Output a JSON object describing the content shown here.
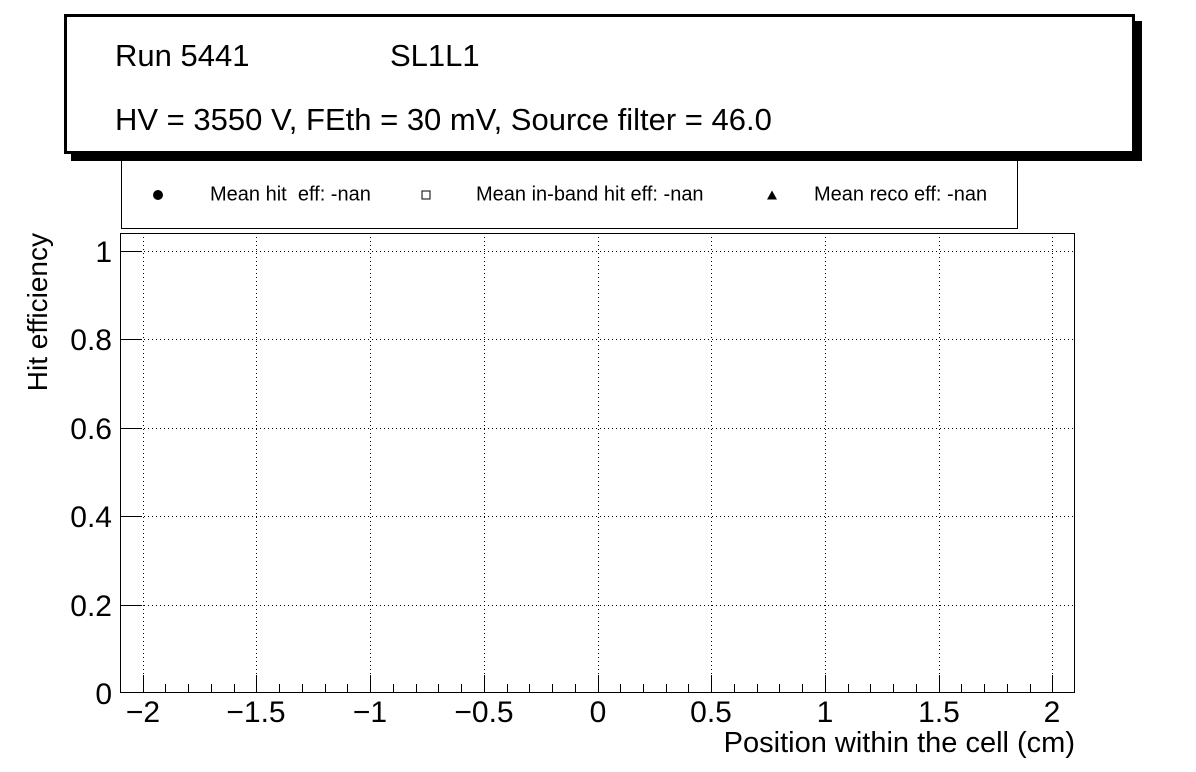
{
  "title_box": {
    "run": "Run 5441",
    "chamber": "SL1L1",
    "conditions": "HV = 3550 V, FEth = 30 mV, Source filter = 46.0"
  },
  "legend": {
    "entries": [
      {
        "marker": "filled-circle-icon",
        "label": "Mean hit  eff: -nan"
      },
      {
        "marker": "open-square-icon",
        "label": "Mean in-band hit eff: -nan"
      },
      {
        "marker": "filled-triangle-icon",
        "label": "Mean reco eff: -nan"
      }
    ]
  },
  "axes": {
    "x_title": "Position within the cell (cm)",
    "y_title": "Hit efficiency",
    "x_tick_labels": [
      "−2",
      "−1.5",
      "−1",
      "−0.5",
      "0",
      "0.5",
      "1",
      "1.5",
      "2"
    ],
    "y_tick_labels": [
      "0",
      "0.2",
      "0.4",
      "0.6",
      "0.8",
      "1"
    ]
  },
  "chart_data": {
    "type": "scatter",
    "title": "Run 5441 SL1L1",
    "subtitle": "HV = 3550 V, FEth = 30 mV, Source filter = 46.0",
    "xlabel": "Position within the cell (cm)",
    "ylabel": "Hit efficiency",
    "xlim": [
      -2.1,
      2.1
    ],
    "ylim": [
      0,
      1.04
    ],
    "x_major_ticks": [
      -2,
      -1.5,
      -1,
      -0.5,
      0,
      0.5,
      1,
      1.5,
      2
    ],
    "x_minor_tick_step": 0.1,
    "y_major_ticks": [
      0,
      0.2,
      0.4,
      0.6,
      0.8,
      1
    ],
    "grid": true,
    "grid_style": "dotted",
    "legend_position": "top",
    "series": [
      {
        "name": "Mean hit  eff: -nan",
        "marker": "filled-circle",
        "points": []
      },
      {
        "name": "Mean in-band hit eff: -nan",
        "marker": "open-square",
        "points": []
      },
      {
        "name": "Mean reco eff: -nan",
        "marker": "filled-triangle",
        "points": []
      }
    ],
    "colors": {
      "foreground": "#000000",
      "background": "#ffffff"
    }
  }
}
